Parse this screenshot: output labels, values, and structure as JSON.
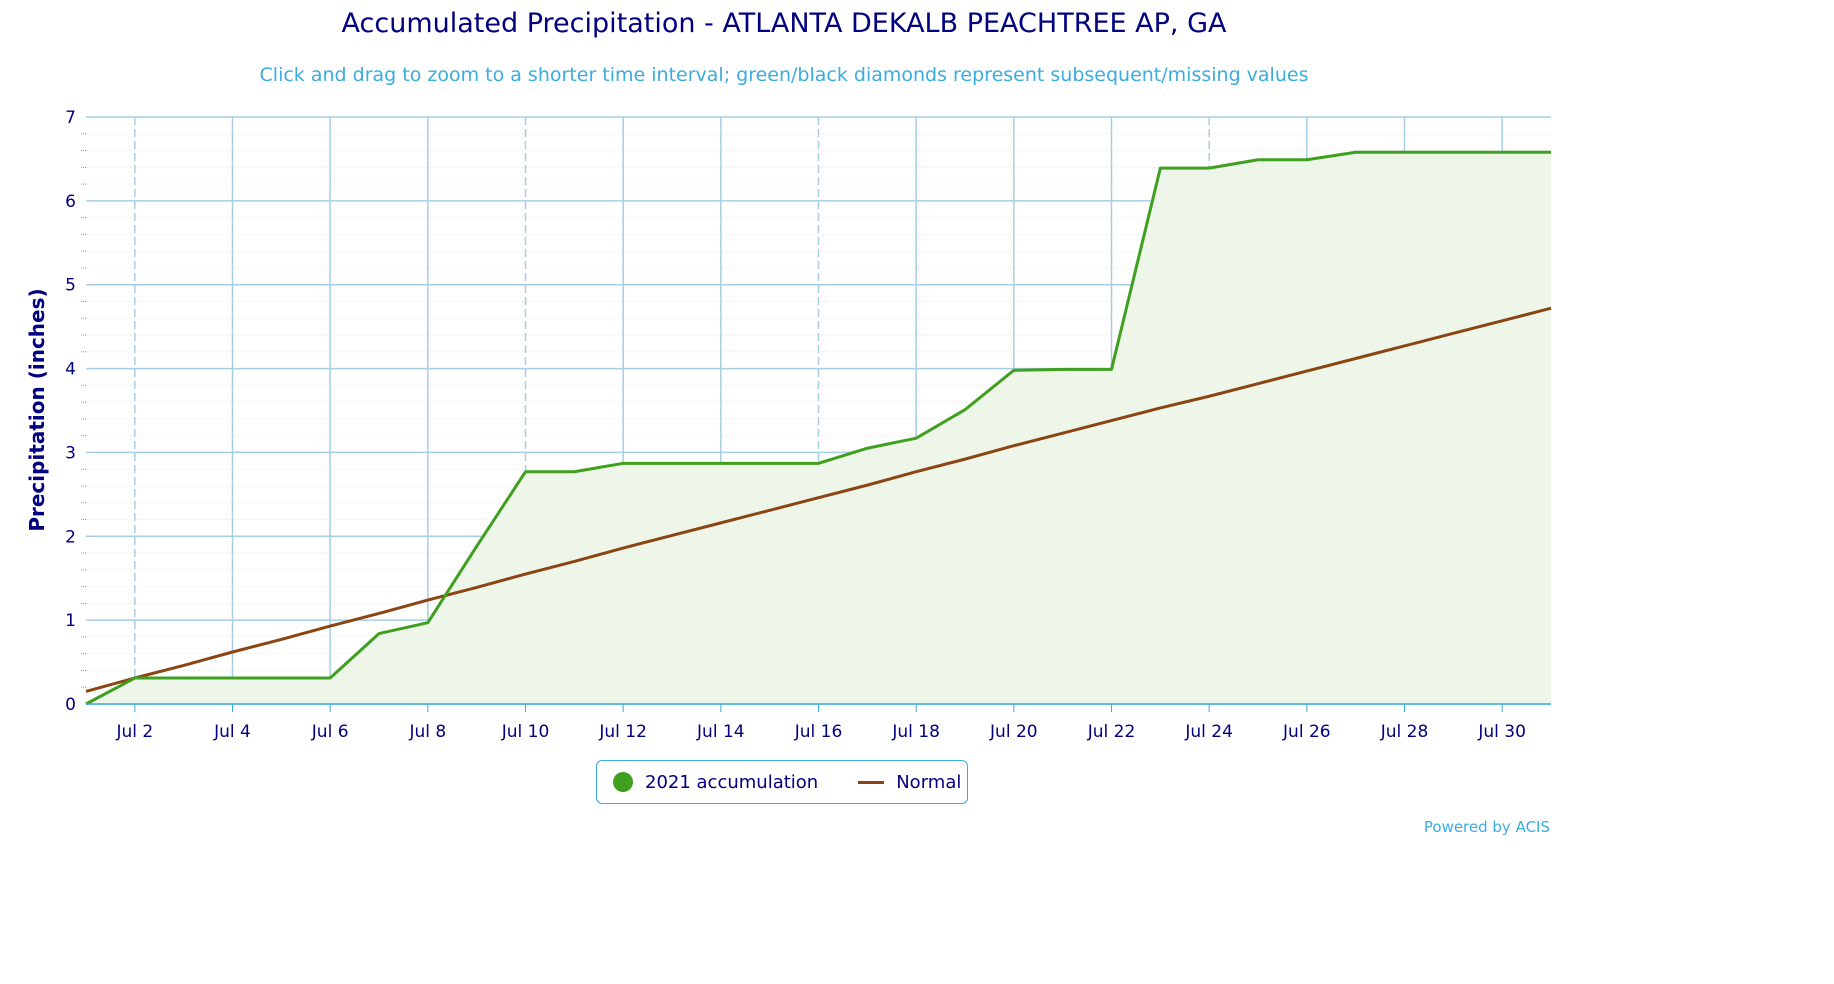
{
  "chart_data": {
    "type": "area",
    "title": "Accumulated Precipitation - ATLANTA DEKALB PEACHTREE AP, GA",
    "subtitle": "Click and drag to zoom to a shorter time interval; green/black diamonds represent subsequent/missing values",
    "ylabel": "Precipitation (inches)",
    "xlabel": "",
    "ylim": [
      0,
      7
    ],
    "yticks": [
      "0",
      "1",
      "2",
      "3",
      "4",
      "5",
      "6",
      "7"
    ],
    "xticks": [
      "Jul 2",
      "Jul 4",
      "Jul 6",
      "Jul 8",
      "Jul 10",
      "Jul 12",
      "Jul 14",
      "Jul 16",
      "Jul 18",
      "Jul 20",
      "Jul 22",
      "Jul 24",
      "Jul 26",
      "Jul 28",
      "Jul 30"
    ],
    "x": [
      "Jul 1",
      "Jul 2",
      "Jul 3",
      "Jul 4",
      "Jul 5",
      "Jul 6",
      "Jul 7",
      "Jul 8",
      "Jul 9",
      "Jul 10",
      "Jul 11",
      "Jul 12",
      "Jul 13",
      "Jul 14",
      "Jul 15",
      "Jul 16",
      "Jul 17",
      "Jul 18",
      "Jul 19",
      "Jul 20",
      "Jul 21",
      "Jul 22",
      "Jul 23",
      "Jul 24",
      "Jul 25",
      "Jul 26",
      "Jul 27",
      "Jul 28",
      "Jul 29",
      "Jul 30",
      "Jul 31"
    ],
    "series": [
      {
        "name": "2021 accumulation",
        "color": "#3f9f1f",
        "fill": "#eef6e9",
        "values": [
          0.0,
          0.31,
          0.31,
          0.31,
          0.31,
          0.31,
          0.84,
          0.97,
          1.88,
          2.77,
          2.77,
          2.87,
          2.87,
          2.87,
          2.87,
          2.87,
          3.05,
          3.17,
          3.51,
          3.98,
          3.99,
          3.99,
          6.39,
          6.39,
          6.49,
          6.49,
          6.58,
          6.58,
          6.58,
          6.58,
          6.58
        ]
      },
      {
        "name": "Normal",
        "color": "#8b4513",
        "values": [
          0.15,
          0.31,
          0.46,
          0.62,
          0.77,
          0.93,
          1.08,
          1.24,
          1.39,
          1.55,
          1.7,
          1.86,
          2.01,
          2.16,
          2.31,
          2.46,
          2.61,
          2.77,
          2.92,
          3.08,
          3.23,
          3.38,
          3.53,
          3.67,
          3.82,
          3.97,
          4.12,
          4.27,
          4.42,
          4.57,
          4.72
        ]
      }
    ],
    "legend_position": "bottom-center",
    "grid": true
  },
  "credits": "Powered by ACIS"
}
